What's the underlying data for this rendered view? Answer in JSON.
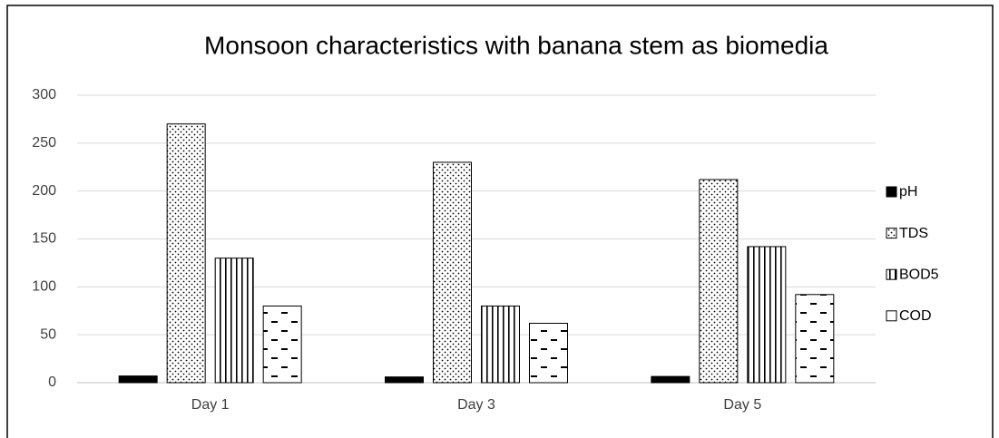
{
  "chart_data": {
    "type": "bar",
    "title": "Monsoon characteristics with banana stem as biomedia",
    "categories": [
      "Day 1",
      "Day 3",
      "Day 5"
    ],
    "series": [
      {
        "name": "pH",
        "color": "#000000",
        "pattern": "solid",
        "values": [
          7,
          6,
          6.5
        ]
      },
      {
        "name": "TDS",
        "color": "#000000",
        "pattern": "dots",
        "values": [
          270,
          230,
          212
        ]
      },
      {
        "name": "BOD5",
        "color": "#000000",
        "pattern": "vertical",
        "values": [
          130,
          80,
          142
        ]
      },
      {
        "name": "COD",
        "color": "#000000",
        "pattern": "dashes",
        "values": [
          80,
          62,
          92
        ]
      }
    ],
    "ylim": [
      0,
      300
    ],
    "yticks": [
      0,
      50,
      100,
      150,
      200,
      250,
      300
    ],
    "grid": true,
    "legend": "right"
  }
}
